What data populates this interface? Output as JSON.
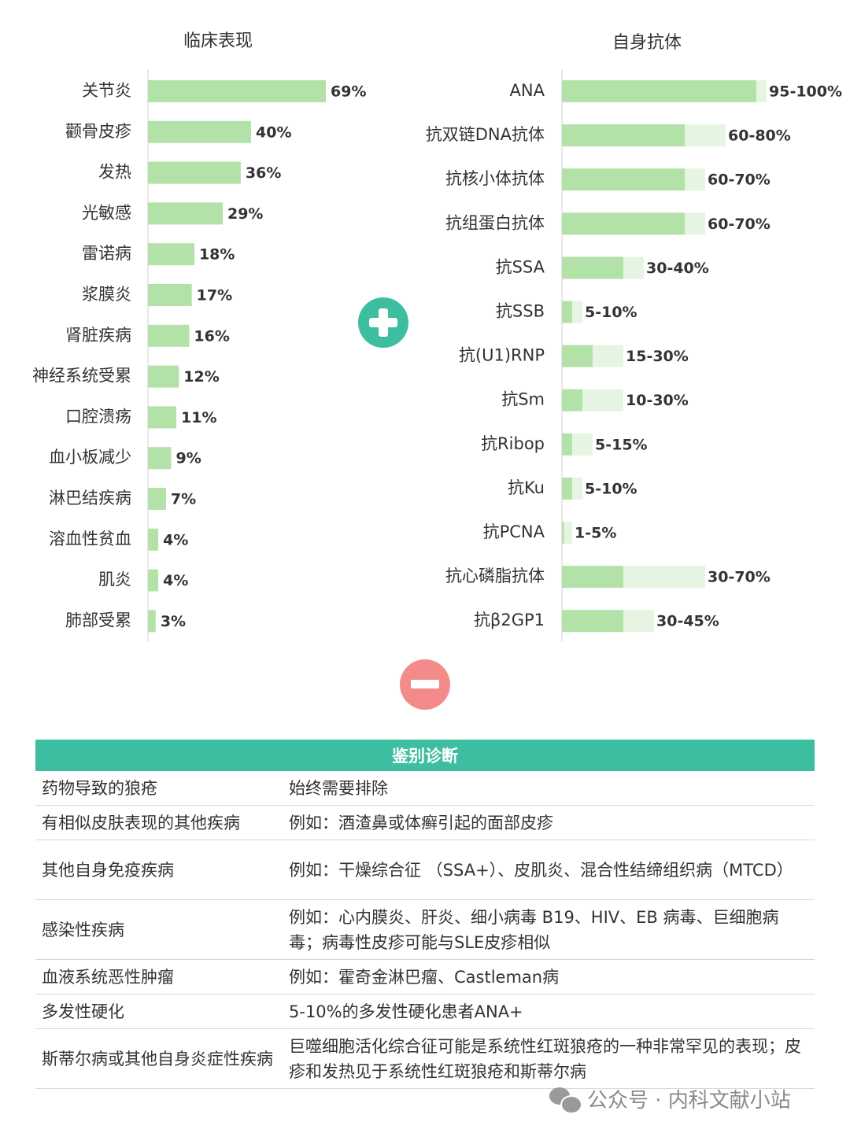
{
  "chart_data": [
    {
      "type": "bar",
      "orientation": "horizontal",
      "title": "临床表现",
      "unit": "%",
      "categories": [
        "关节炎",
        "颧骨皮疹",
        "发热",
        "光敏感",
        "雷诺病",
        "浆膜炎",
        "肾脏疾病",
        "神经系统受累",
        "口腔溃疡",
        "血小板减少",
        "淋巴结疾病",
        "溶血性贫血",
        "肌炎",
        "肺部受累"
      ],
      "values": [
        69,
        40,
        36,
        29,
        18,
        17,
        16,
        12,
        11,
        9,
        7,
        4,
        4,
        3
      ],
      "value_labels": [
        "69%",
        "40%",
        "36%",
        "29%",
        "18%",
        "17%",
        "16%",
        "12%",
        "11%",
        "9%",
        "7%",
        "4%",
        "4%",
        "3%"
      ],
      "color": "#b3e2a8"
    },
    {
      "type": "bar",
      "orientation": "horizontal",
      "title": "自身抗体",
      "unit": "%",
      "categories": [
        "ANA",
        "抗双链DNA抗体",
        "抗核小体抗体",
        "抗组蛋白抗体",
        "抗SSA",
        "抗SSB",
        "抗(U1)RNP",
        "抗Sm",
        "抗Ribop",
        "抗Ku",
        "抗PCNA",
        "抗心磷脂抗体",
        "抗β2GP1"
      ],
      "low": [
        95,
        60,
        60,
        60,
        30,
        5,
        15,
        10,
        5,
        5,
        1,
        30,
        30
      ],
      "high": [
        100,
        80,
        70,
        70,
        40,
        10,
        30,
        30,
        15,
        10,
        5,
        70,
        45
      ],
      "value_labels": [
        "95-100%",
        "60-80%",
        "60-70%",
        "60-70%",
        "30-40%",
        "5-10%",
        "15-30%",
        "10-30%",
        "5-15%",
        "5-10%",
        "1-5%",
        "30-70%",
        "30-45%"
      ],
      "color_low": "#b3e2a8",
      "color_range": "#e6f5e2"
    }
  ],
  "table": {
    "header": "鉴别诊断",
    "rows": [
      {
        "name": "药物导致的狼疮",
        "desc": "始终需要排除"
      },
      {
        "name": "有相似皮肤表现的其他疾病",
        "desc": "例如：酒渣鼻或体癣引起的面部皮疹"
      },
      {
        "name": "其他自身免疫疾病",
        "desc": "例如：干燥综合征 （SSA+）、皮肌炎、混合性结缔组织病（MTCD）"
      },
      {
        "name": "感染性疾病",
        "desc": "例如：心内膜炎、肝炎、细小病毒 B19、HIV、EB 病毒、巨细胞病毒；病毒性皮疹可能与SLE皮疹相似"
      },
      {
        "name": "血液系统恶性肿瘤",
        "desc": "例如：霍奇金淋巴瘤、Castleman病"
      },
      {
        "name": "多发性硬化",
        "desc": "5-10%的多发性硬化患者ANA+"
      },
      {
        "name": "斯蒂尔病或其他自身炎症性疾病",
        "desc": "巨噬细胞活化综合征可能是系统性红斑狼疮的一种非常罕见的表现；皮疹和发热见于系统性红斑狼疮和斯蒂尔病"
      }
    ]
  },
  "icons": {
    "plus": "plus-circle-icon",
    "minus": "minus-circle-icon",
    "wechat": "wechat-icon"
  },
  "watermark": "公众号 · 内科文献小站"
}
